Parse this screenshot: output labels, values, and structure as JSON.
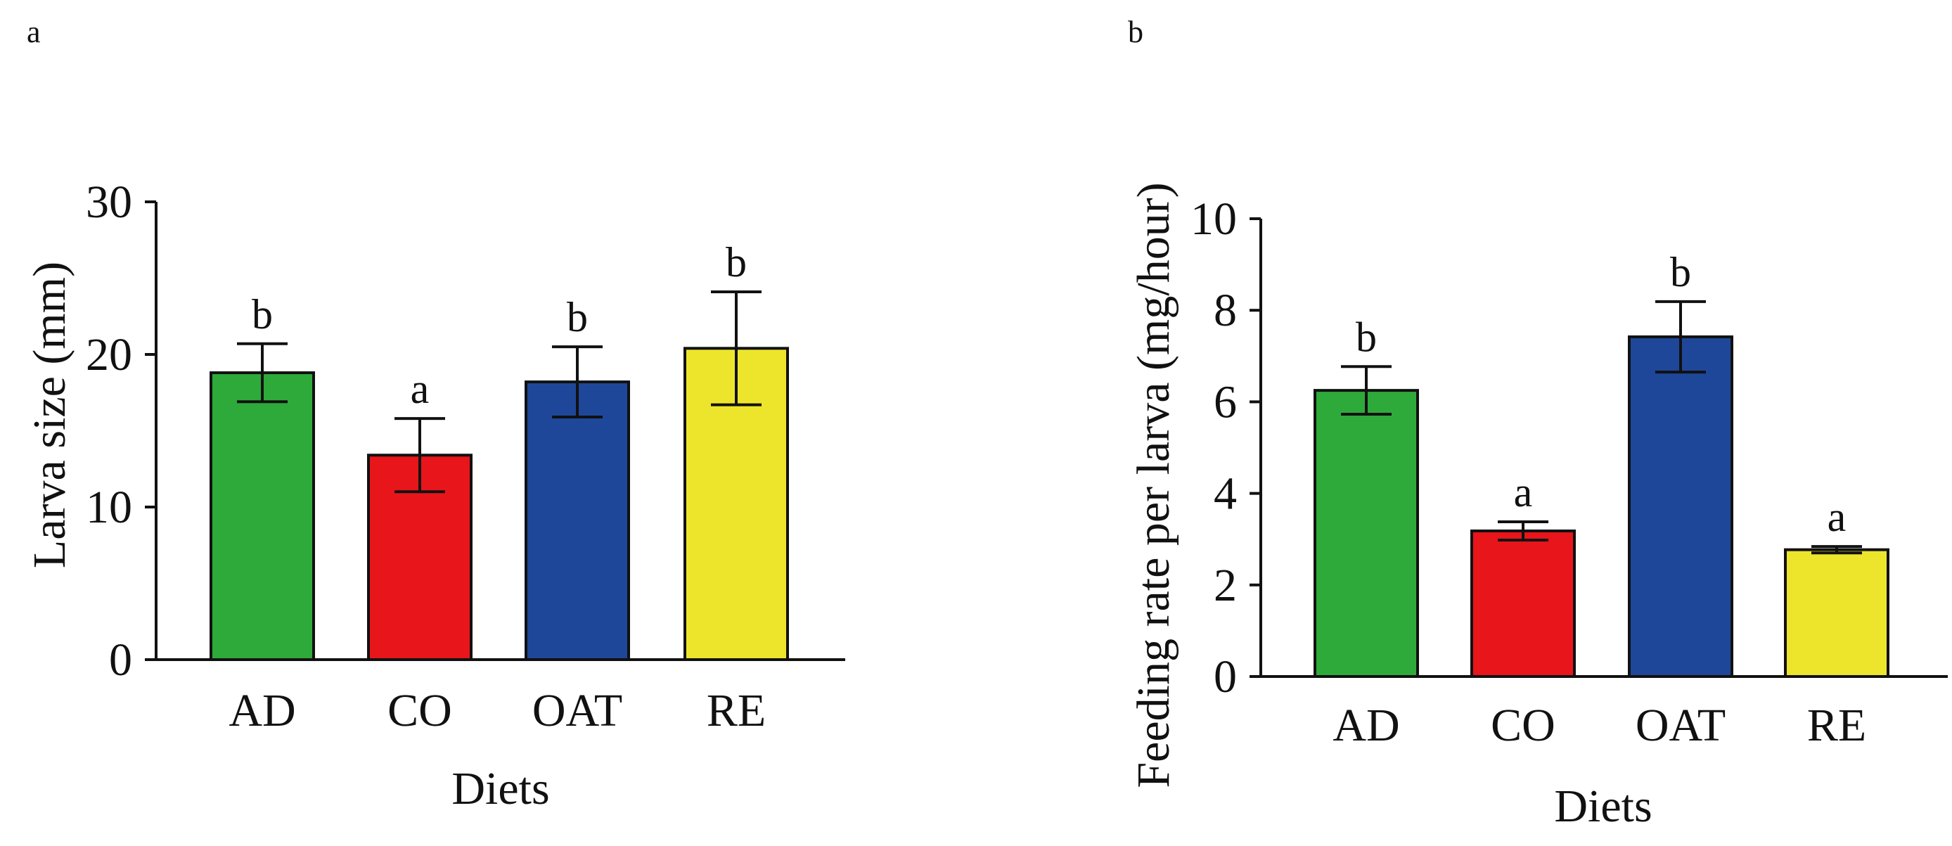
{
  "colors": {
    "AD": "#2eaa3a",
    "CO": "#e8151b",
    "OAT": "#1e479a",
    "RE": "#ede52c"
  },
  "chart_data": [
    {
      "panel": "a",
      "type": "bar",
      "categories": [
        "AD",
        "CO",
        "OAT",
        "RE"
      ],
      "values": [
        18.8,
        13.4,
        18.2,
        20.4
      ],
      "errors": [
        1.9,
        2.4,
        2.3,
        3.7
      ],
      "significance": [
        "b",
        "a",
        "b",
        "b"
      ],
      "xlabel": "Diets",
      "ylabel": "Larva size (mm)",
      "ylim": [
        0,
        30
      ],
      "yticks": [
        0,
        10,
        20,
        30
      ],
      "grid": false,
      "legend": "none"
    },
    {
      "panel": "b",
      "type": "bar",
      "categories": [
        "AD",
        "CO",
        "OAT",
        "RE"
      ],
      "values": [
        6.25,
        3.18,
        7.42,
        2.77
      ],
      "errors": [
        0.52,
        0.2,
        0.77,
        0.07
      ],
      "significance": [
        "b",
        "a",
        "b",
        "a"
      ],
      "xlabel": "Diets",
      "ylabel": "Feeding rate per larva (mg/hour)",
      "ylim": [
        0,
        10
      ],
      "yticks": [
        0,
        2,
        4,
        6,
        8,
        10
      ],
      "grid": false,
      "legend": "none"
    }
  ]
}
